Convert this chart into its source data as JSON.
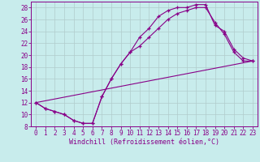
{
  "xlabel": "Windchill (Refroidissement éolien,°C)",
  "background_color": "#c8ecec",
  "grid_color": "#b0cccc",
  "line_color": "#880088",
  "xlim": [
    -0.5,
    23.5
  ],
  "ylim": [
    8,
    29
  ],
  "xticks": [
    0,
    1,
    2,
    3,
    4,
    5,
    6,
    7,
    8,
    9,
    10,
    11,
    12,
    13,
    14,
    15,
    16,
    17,
    18,
    19,
    20,
    21,
    22,
    23
  ],
  "yticks": [
    8,
    10,
    12,
    14,
    16,
    18,
    20,
    22,
    24,
    26,
    28
  ],
  "line1_x": [
    0,
    1,
    2,
    3,
    4,
    5,
    6,
    7,
    8,
    9,
    10,
    11,
    12,
    13,
    14,
    15,
    16,
    17,
    18,
    19,
    20,
    21,
    22,
    23
  ],
  "line1_y": [
    12,
    11,
    10.5,
    10,
    9,
    8.5,
    8.5,
    13,
    16,
    18.5,
    20.5,
    23,
    24.5,
    26.5,
    27.5,
    28,
    28,
    28.5,
    28.5,
    25,
    24,
    21,
    19.5,
    19
  ],
  "line2_x": [
    0,
    1,
    2,
    3,
    4,
    5,
    6,
    7,
    8,
    9,
    10,
    11,
    12,
    13,
    14,
    15,
    16,
    17,
    18,
    19,
    20,
    21,
    22,
    23
  ],
  "line2_y": [
    12,
    11,
    10.5,
    10,
    9,
    8.5,
    8.5,
    13,
    16,
    18.5,
    20.5,
    21.5,
    23,
    24.5,
    26,
    27,
    27.5,
    28,
    28,
    25.5,
    23.5,
    20.5,
    19,
    19
  ],
  "line3_x": [
    0,
    23
  ],
  "line3_y": [
    12,
    19
  ],
  "tick_fontsize": 5.5,
  "xlabel_fontsize": 6.0
}
